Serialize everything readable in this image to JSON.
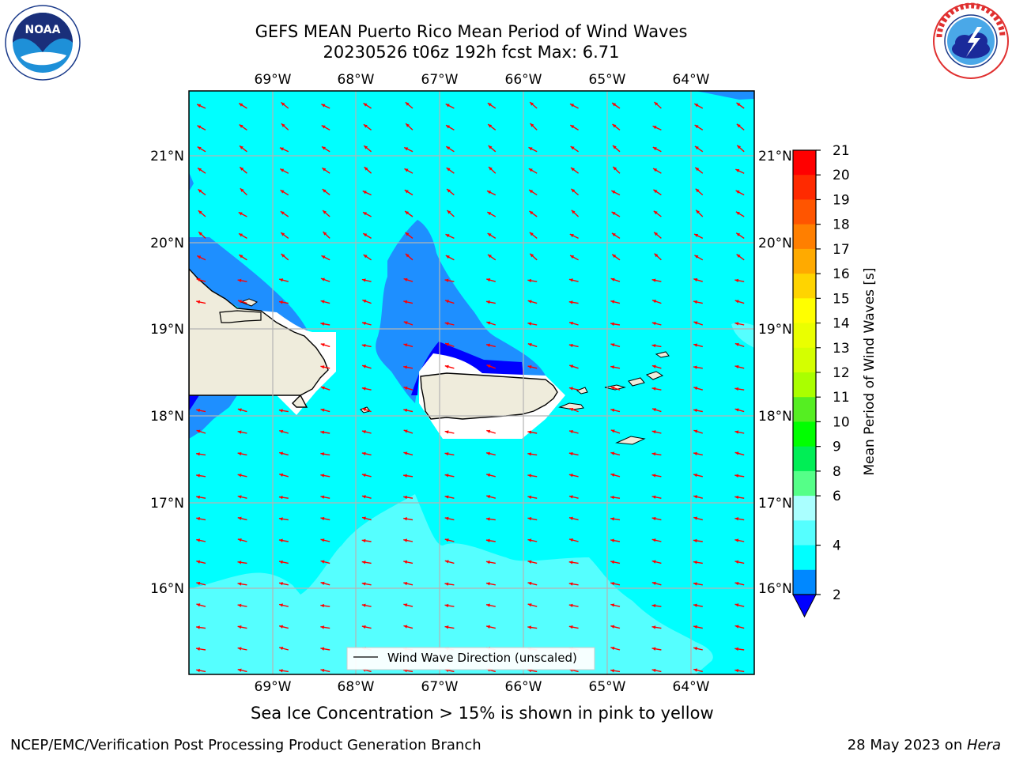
{
  "title": {
    "line1": "GEFS MEAN Puerto Rico Mean Period of Wind Waves",
    "line2": "20230526 t06z 192h fcst   Max: 6.71"
  },
  "logos": {
    "noaa_text": "NOAA",
    "noaa_ring_text": "NATIONAL OCEANIC AND ATMOSPHERIC ADMINISTRATION · U.S. DEPARTMENT OF COMMERCE",
    "nws_ring_text": "NATIONAL WEATHER SERVICE"
  },
  "axes": {
    "lon_labels": [
      "69°W",
      "68°W",
      "67°W",
      "66°W",
      "65°W",
      "64°W"
    ],
    "lat_labels": [
      "21°N",
      "20°N",
      "19°N",
      "18°N",
      "17°N",
      "16°N"
    ]
  },
  "legend": {
    "label": "Wind Wave Direction (unscaled)"
  },
  "colorbar": {
    "label": "Mean Period of Wind Waves [s]",
    "ticks": [
      "21",
      "20",
      "19",
      "18",
      "17",
      "16",
      "15",
      "14",
      "13",
      "12",
      "11",
      "10",
      "9",
      "8",
      "6",
      "4",
      "2"
    ],
    "colors": [
      "#ff0000",
      "#ff2a00",
      "#ff5500",
      "#ff7f00",
      "#ffaa00",
      "#ffd400",
      "#ffff00",
      "#eaff00",
      "#d4ff00",
      "#aaff00",
      "#55ee22",
      "#00ff00",
      "#00ee55",
      "#55ff88",
      "#aaffff",
      "#55ffff",
      "#00ffff",
      "#0088ff"
    ],
    "extend_color": "#0000ff"
  },
  "colors": {
    "ocean_main": "#00ffff",
    "ocean_light": "#55ffff",
    "ocean_blue": "#1e8fff",
    "ocean_deep": "#0000ff",
    "land": "#efecdc",
    "arrow": "#ff0000",
    "grid": "#b4b4b4"
  },
  "note": "Sea Ice Concentration > 15% is shown in pink to yellow",
  "footer": {
    "left": "NCEP/EMC/Verification Post Processing Product Generation Branch",
    "right_prefix": "28 May 2023 on ",
    "right_host": "Hera"
  }
}
